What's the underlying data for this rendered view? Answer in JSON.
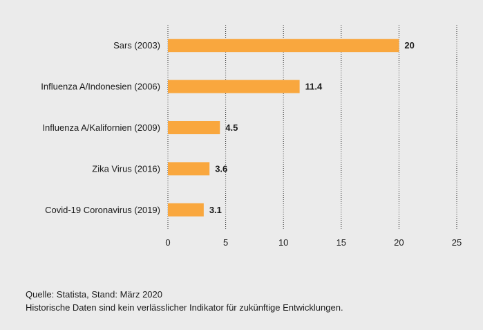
{
  "colors": {
    "bar": "#f9a73e",
    "grid": "#333333",
    "background": "#ebebeb"
  },
  "chart_data": {
    "type": "bar",
    "orientation": "horizontal",
    "title": "",
    "xlabel": "",
    "ylabel": "",
    "categories": [
      "Sars (2003)",
      "Influenza A/Indonesien (2006)",
      "Influenza A/Kalifornien (2009)",
      "Zika Virus (2016)",
      "Covid-19 Coronavirus (2019)"
    ],
    "values": [
      20,
      11.4,
      4.5,
      3.6,
      3.1
    ],
    "value_labels": [
      "20",
      "11.4",
      "4.5",
      "3.6",
      "3.1"
    ],
    "xlim": [
      0,
      25
    ],
    "xticks": [
      0,
      5,
      10,
      15,
      20,
      25
    ],
    "grid": "vertical dotted",
    "legend": "none"
  },
  "footer": {
    "source": "Quelle: Statista, Stand: März 2020",
    "disclaimer": "Historische Daten sind kein verlässlicher Indikator für zukünftige Entwicklungen."
  }
}
